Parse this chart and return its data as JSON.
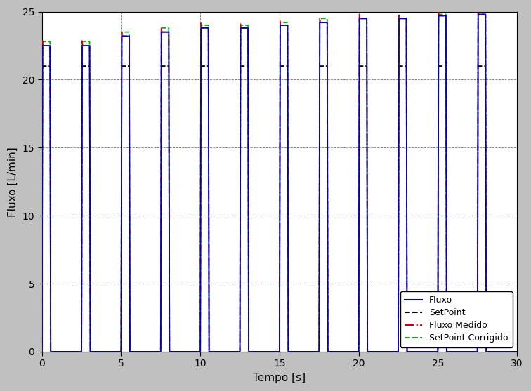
{
  "title": "",
  "xlabel": "Tempo [s]",
  "ylabel": "Fluxo [L/min]",
  "xlim": [
    0,
    30
  ],
  "ylim": [
    0,
    25
  ],
  "xticks": [
    0,
    5,
    10,
    15,
    20,
    25,
    30
  ],
  "yticks": [
    0,
    5,
    10,
    15,
    20,
    25
  ],
  "background_color": "#c0c0c0",
  "plot_bg_color": "#ffffff",
  "grid_color": "#000000",
  "setpoint_level": 21.0,
  "cycle_period": 2.5,
  "on_duration": 0.55,
  "peak_values": [
    22.5,
    22.5,
    23.2,
    23.5,
    23.8,
    23.8,
    24.0,
    24.2,
    24.5,
    24.5,
    24.7,
    24.8
  ],
  "sp_corr_values": [
    22.8,
    22.8,
    23.5,
    23.8,
    24.0,
    24.0,
    24.2,
    24.5,
    24.5,
    24.5,
    24.8,
    25.0
  ],
  "colors": {
    "fluxo": "#0000cc",
    "setpoint": "#000000",
    "fluxo_medido": "#cc0000",
    "setpoint_corrigido": "#00bb00"
  },
  "legend_labels": [
    "Fluxo",
    "SetPoint",
    "Fluxo Medido",
    "SetPoint Corrigido"
  ],
  "figsize": [
    7.56,
    5.57
  ],
  "dpi": 100
}
